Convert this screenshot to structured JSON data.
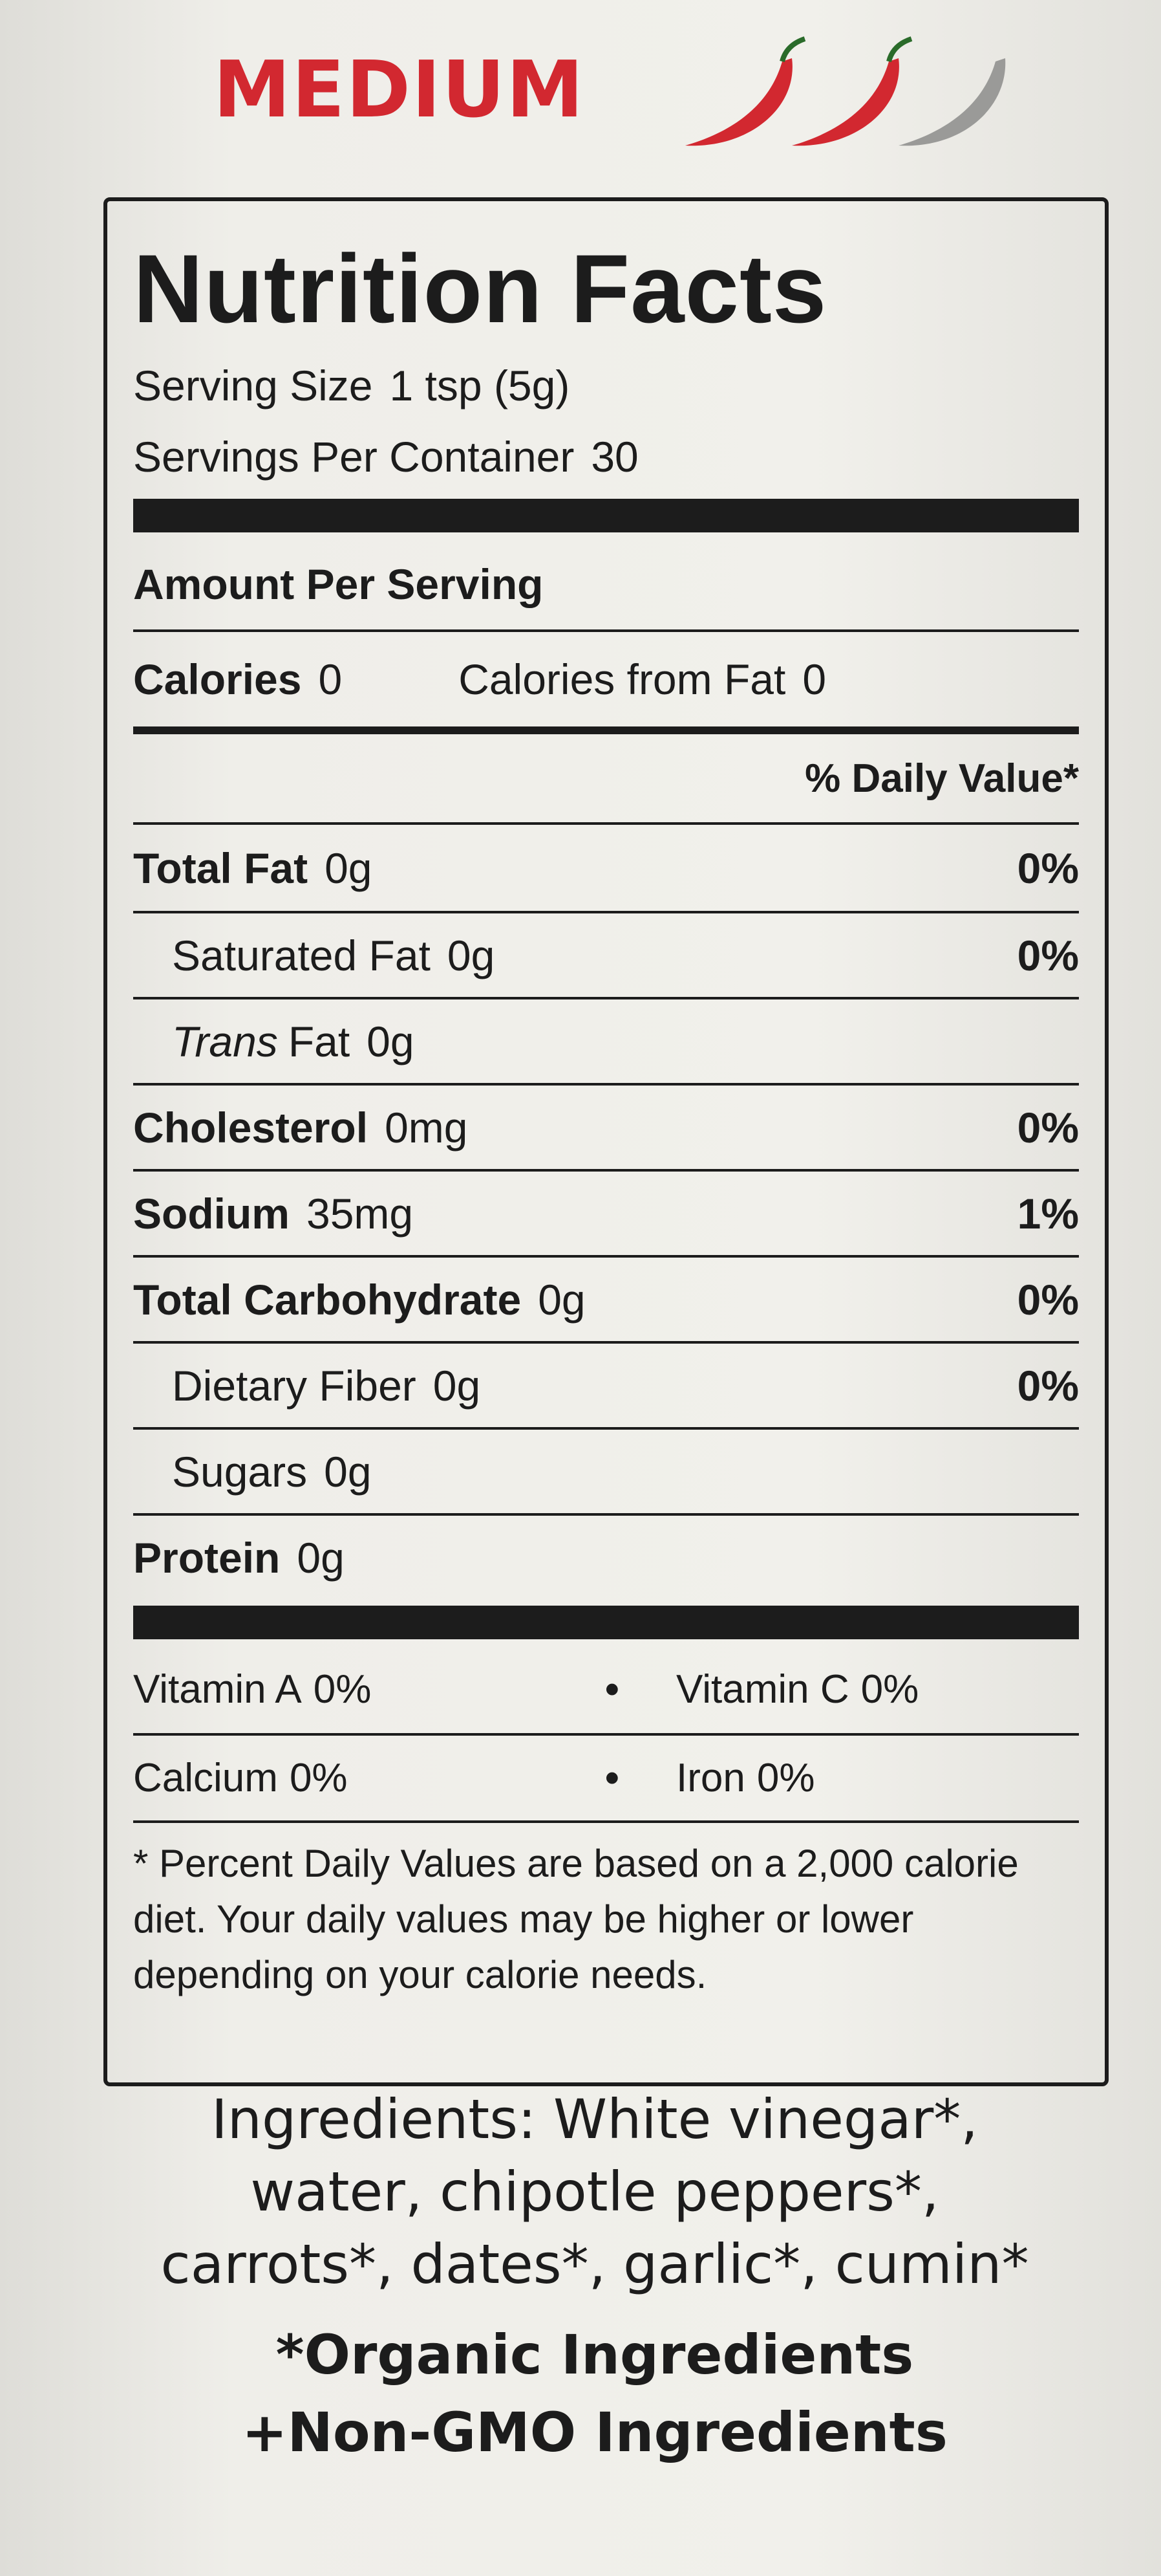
{
  "heat": {
    "label": "MEDIUM"
  },
  "panel": {
    "title": "Nutrition Facts",
    "serving_size": {
      "label": "Serving Size",
      "value": "1 tsp (5g)"
    },
    "servings": {
      "label": "Servings Per Container",
      "value": "30"
    },
    "amount_header": "Amount Per Serving",
    "calories": {
      "label": "Calories",
      "value": "0"
    },
    "calories_fat": {
      "label": "Calories from Fat",
      "value": "0"
    },
    "dv_header": "% Daily Value*",
    "rows": [
      {
        "label": "Total Fat",
        "amount": "0g",
        "dv": "0%",
        "bold": true,
        "indent": false
      },
      {
        "label": "Saturated Fat",
        "amount": "0g",
        "dv": "0%",
        "bold": false,
        "indent": true
      },
      {
        "italic": "Trans",
        "label": "Fat",
        "amount": "0g",
        "bold": false,
        "indent": true
      },
      {
        "label": "Cholesterol",
        "amount": "0mg",
        "dv": "0%",
        "bold": true,
        "indent": false
      },
      {
        "label": "Sodium",
        "amount": "35mg",
        "dv": "1%",
        "bold": true,
        "indent": false
      },
      {
        "label": "Total Carbohydrate",
        "amount": "0g",
        "dv": "0%",
        "bold": true,
        "indent": false
      },
      {
        "label": "Dietary Fiber",
        "amount": "0g",
        "dv": "0%",
        "bold": false,
        "indent": true
      },
      {
        "label": "Sugars",
        "amount": "0g",
        "bold": false,
        "indent": true
      },
      {
        "label": "Protein",
        "amount": "0g",
        "bold": true,
        "indent": false
      }
    ],
    "vitamins": [
      [
        {
          "name": "Vitamin A",
          "value": "0%"
        },
        {
          "name": "Vitamin C",
          "value": "0%"
        }
      ],
      [
        {
          "name": "Calcium",
          "value": "0%"
        },
        {
          "name": "Iron",
          "value": "0%"
        }
      ]
    ],
    "footnote": "* Percent Daily Values are based on a 2,000 calorie diet. Your daily values may be higher or lower depending on your calorie needs."
  },
  "ingredients": "Ingredients: White vinegar*, water, chipotle peppers*, carrots*, dates*, garlic*, cumin*",
  "notes": [
    "*Organic Ingredients",
    "+Non-GMO Ingredients"
  ]
}
